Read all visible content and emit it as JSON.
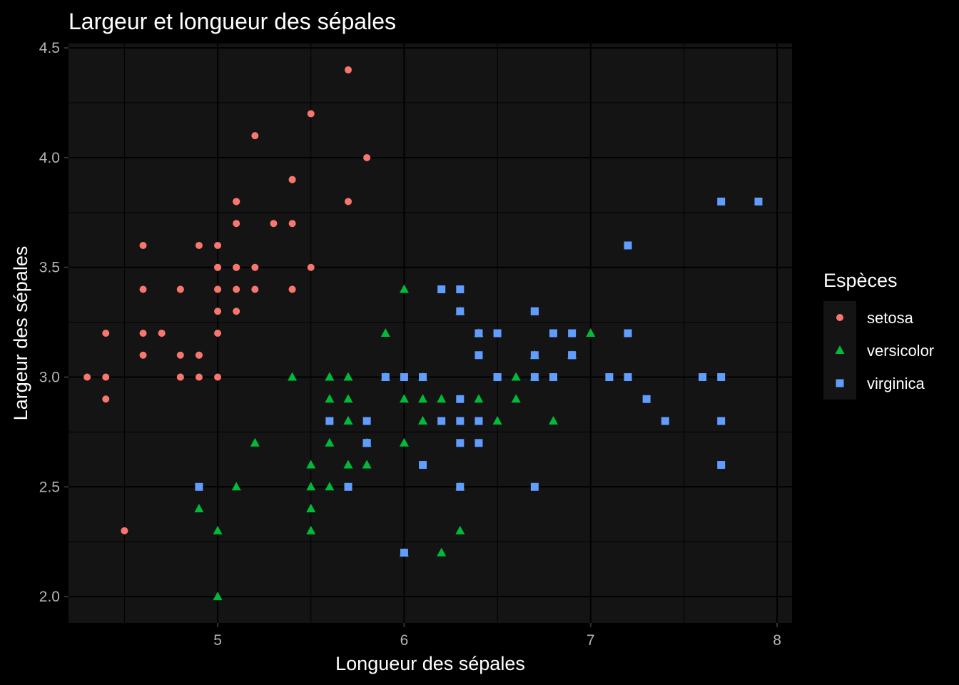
{
  "chart_data": {
    "type": "scatter",
    "title": "Largeur et longueur des sépales",
    "xlabel": "Longueur des sépales",
    "ylabel": "Largeur des sépales",
    "xlim": [
      4.2,
      8.08
    ],
    "ylim": [
      1.88,
      4.52
    ],
    "x_ticks": [
      5,
      6,
      7,
      8
    ],
    "y_ticks": [
      2.0,
      2.5,
      3.0,
      3.5,
      4.0,
      4.5
    ],
    "x_tick_labels": [
      "5",
      "6",
      "7",
      "8"
    ],
    "y_tick_labels": [
      "2.0",
      "2.5",
      "3.0",
      "3.5",
      "4.0",
      "4.5"
    ],
    "grid": true,
    "legend": {
      "title": "Espèces",
      "position": "right"
    },
    "colors": {
      "background": "#000000",
      "panel": "#141414",
      "grid": "#000000",
      "text": "#FFFFFF",
      "tick_text": "#B3B3B3"
    },
    "series": [
      {
        "name": "setosa",
        "shape": "circle",
        "color": "#F8766D",
        "points": [
          [
            5.1,
            3.5
          ],
          [
            4.9,
            3.0
          ],
          [
            4.7,
            3.2
          ],
          [
            4.6,
            3.1
          ],
          [
            5.0,
            3.6
          ],
          [
            5.4,
            3.9
          ],
          [
            4.6,
            3.4
          ],
          [
            5.0,
            3.4
          ],
          [
            4.4,
            2.9
          ],
          [
            4.9,
            3.1
          ],
          [
            5.4,
            3.7
          ],
          [
            4.8,
            3.4
          ],
          [
            4.8,
            3.0
          ],
          [
            4.3,
            3.0
          ],
          [
            5.8,
            4.0
          ],
          [
            5.7,
            4.4
          ],
          [
            5.4,
            3.9
          ],
          [
            5.1,
            3.5
          ],
          [
            5.7,
            3.8
          ],
          [
            5.1,
            3.8
          ],
          [
            5.4,
            3.4
          ],
          [
            5.1,
            3.7
          ],
          [
            4.6,
            3.6
          ],
          [
            5.1,
            3.3
          ],
          [
            4.8,
            3.4
          ],
          [
            5.0,
            3.0
          ],
          [
            5.0,
            3.4
          ],
          [
            5.2,
            3.5
          ],
          [
            5.2,
            3.4
          ],
          [
            4.7,
            3.2
          ],
          [
            4.8,
            3.1
          ],
          [
            5.4,
            3.4
          ],
          [
            5.2,
            4.1
          ],
          [
            5.5,
            4.2
          ],
          [
            4.9,
            3.1
          ],
          [
            5.0,
            3.2
          ],
          [
            5.5,
            3.5
          ],
          [
            4.9,
            3.6
          ],
          [
            4.4,
            3.0
          ],
          [
            5.1,
            3.4
          ],
          [
            5.0,
            3.5
          ],
          [
            4.5,
            2.3
          ],
          [
            4.4,
            3.2
          ],
          [
            5.0,
            3.5
          ],
          [
            5.1,
            3.8
          ],
          [
            4.8,
            3.0
          ],
          [
            5.1,
            3.8
          ],
          [
            4.6,
            3.2
          ],
          [
            5.3,
            3.7
          ],
          [
            5.0,
            3.3
          ]
        ]
      },
      {
        "name": "versicolor",
        "shape": "triangle",
        "color": "#00BA38",
        "points": [
          [
            7.0,
            3.2
          ],
          [
            6.4,
            3.2
          ],
          [
            6.9,
            3.1
          ],
          [
            5.5,
            2.3
          ],
          [
            6.5,
            2.8
          ],
          [
            5.7,
            2.8
          ],
          [
            6.3,
            3.3
          ],
          [
            4.9,
            2.4
          ],
          [
            6.6,
            2.9
          ],
          [
            5.2,
            2.7
          ],
          [
            5.0,
            2.0
          ],
          [
            5.9,
            3.0
          ],
          [
            6.0,
            2.2
          ],
          [
            6.1,
            2.9
          ],
          [
            5.6,
            2.9
          ],
          [
            6.7,
            3.1
          ],
          [
            5.6,
            3.0
          ],
          [
            5.8,
            2.7
          ],
          [
            6.2,
            2.2
          ],
          [
            5.6,
            2.5
          ],
          [
            5.9,
            3.2
          ],
          [
            6.1,
            2.8
          ],
          [
            6.3,
            2.5
          ],
          [
            6.1,
            2.8
          ],
          [
            6.4,
            2.9
          ],
          [
            6.6,
            3.0
          ],
          [
            6.8,
            2.8
          ],
          [
            6.7,
            3.0
          ],
          [
            6.0,
            2.9
          ],
          [
            5.7,
            2.6
          ],
          [
            5.5,
            2.4
          ],
          [
            5.5,
            2.4
          ],
          [
            5.8,
            2.7
          ],
          [
            6.0,
            2.7
          ],
          [
            5.4,
            3.0
          ],
          [
            6.0,
            3.4
          ],
          [
            6.7,
            3.1
          ],
          [
            6.3,
            2.3
          ],
          [
            5.6,
            3.0
          ],
          [
            5.5,
            2.5
          ],
          [
            5.5,
            2.6
          ],
          [
            6.1,
            3.0
          ],
          [
            5.8,
            2.6
          ],
          [
            5.0,
            2.3
          ],
          [
            5.6,
            2.7
          ],
          [
            5.7,
            3.0
          ],
          [
            5.7,
            2.9
          ],
          [
            6.2,
            2.9
          ],
          [
            5.1,
            2.5
          ],
          [
            5.7,
            2.8
          ]
        ]
      },
      {
        "name": "virginica",
        "shape": "square",
        "color": "#619CFF",
        "points": [
          [
            6.3,
            3.3
          ],
          [
            5.8,
            2.7
          ],
          [
            7.1,
            3.0
          ],
          [
            6.3,
            2.9
          ],
          [
            6.5,
            3.0
          ],
          [
            7.6,
            3.0
          ],
          [
            4.9,
            2.5
          ],
          [
            7.3,
            2.9
          ],
          [
            6.7,
            2.5
          ],
          [
            7.2,
            3.6
          ],
          [
            6.5,
            3.2
          ],
          [
            6.4,
            2.7
          ],
          [
            6.8,
            3.0
          ],
          [
            5.7,
            2.5
          ],
          [
            5.8,
            2.8
          ],
          [
            6.4,
            3.2
          ],
          [
            6.5,
            3.0
          ],
          [
            7.7,
            3.8
          ],
          [
            7.7,
            2.6
          ],
          [
            6.0,
            2.2
          ],
          [
            6.9,
            3.2
          ],
          [
            5.6,
            2.8
          ],
          [
            7.7,
            2.8
          ],
          [
            6.3,
            2.7
          ],
          [
            6.7,
            3.3
          ],
          [
            7.2,
            3.2
          ],
          [
            6.2,
            2.8
          ],
          [
            6.1,
            3.0
          ],
          [
            6.4,
            2.8
          ],
          [
            7.2,
            3.0
          ],
          [
            7.4,
            2.8
          ],
          [
            7.9,
            3.8
          ],
          [
            6.4,
            2.8
          ],
          [
            6.3,
            2.8
          ],
          [
            6.1,
            2.6
          ],
          [
            7.7,
            3.0
          ],
          [
            6.3,
            3.4
          ],
          [
            6.4,
            3.1
          ],
          [
            6.0,
            3.0
          ],
          [
            6.9,
            3.1
          ],
          [
            6.7,
            3.1
          ],
          [
            6.9,
            3.1
          ],
          [
            5.8,
            2.7
          ],
          [
            6.8,
            3.2
          ],
          [
            6.7,
            3.3
          ],
          [
            6.7,
            3.0
          ],
          [
            6.3,
            2.5
          ],
          [
            6.5,
            3.0
          ],
          [
            6.2,
            3.4
          ],
          [
            5.9,
            3.0
          ]
        ]
      }
    ]
  }
}
